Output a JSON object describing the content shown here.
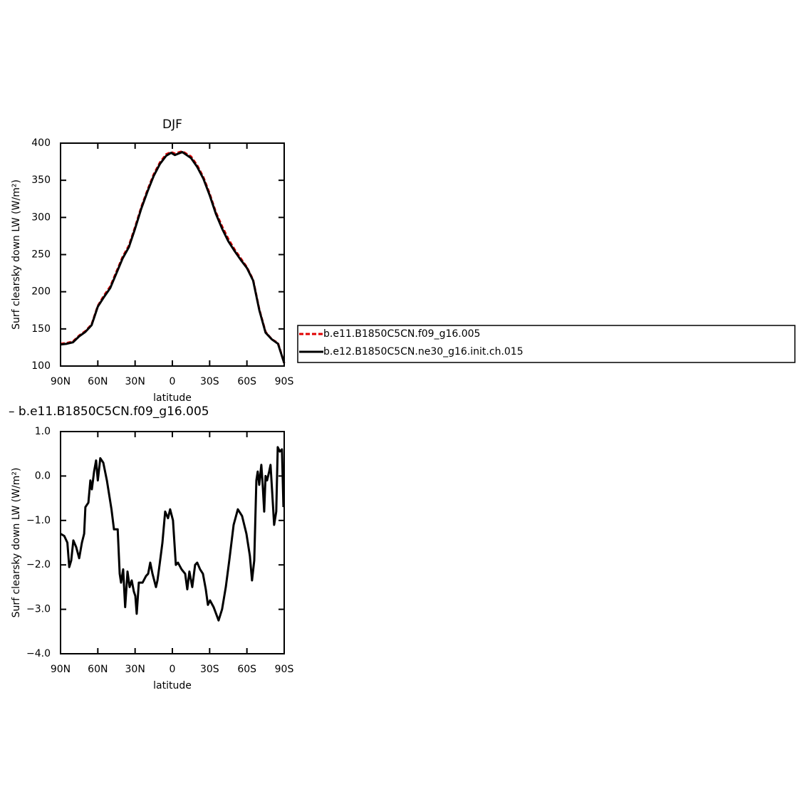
{
  "chart_data": [
    {
      "type": "line",
      "title": "DJF",
      "xlabel": "latitude",
      "ylabel": "Surf clearsky down LW (W/m²)",
      "x": [
        90,
        85,
        80,
        75,
        70,
        65,
        60,
        55,
        50,
        45,
        40,
        35,
        30,
        25,
        20,
        15,
        10,
        5,
        1,
        -2,
        -8,
        -15,
        -20,
        -25,
        -30,
        -35,
        -40,
        -45,
        -50,
        -55,
        -60,
        -65,
        -70,
        -75,
        -80,
        -85,
        -90
      ],
      "series": [
        {
          "name": "b.e11.B1850C5CN.f09_g16.005",
          "color": "#e00000",
          "dash": true,
          "values": [
            130,
            131,
            133,
            141,
            147,
            156,
            181,
            195,
            207,
            227,
            247,
            262,
            287,
            314,
            337,
            358,
            374,
            385,
            388,
            386,
            389,
            382,
            370,
            354,
            332,
            307,
            288,
            271,
            257,
            245,
            233,
            216,
            176,
            146,
            136,
            131,
            104
          ]
        },
        {
          "name": "b.e12.B1850C5CN.ne30_g16.init.ch.015",
          "color": "#000000",
          "dash": false,
          "values": [
            129,
            130,
            132,
            140,
            146,
            155,
            180,
            193,
            205,
            225,
            245,
            260,
            285,
            312,
            335,
            356,
            372,
            383,
            387,
            384,
            388,
            380,
            368,
            352,
            330,
            305,
            285,
            268,
            255,
            243,
            232,
            215,
            175,
            145,
            136,
            130,
            104
          ]
        }
      ],
      "xlim": [
        90,
        -90
      ],
      "xticks": [
        {
          "value": 90,
          "label": "90N"
        },
        {
          "value": 60,
          "label": "60N"
        },
        {
          "value": 30,
          "label": "30N"
        },
        0,
        {
          "value": -30,
          "label": "30S"
        },
        {
          "value": -60,
          "label": "60S"
        },
        {
          "value": -90,
          "label": "90S"
        }
      ],
      "ylim": [
        100,
        400
      ],
      "yticks": [
        100,
        150,
        200,
        250,
        300,
        350,
        400
      ]
    },
    {
      "type": "line",
      "title": "– b.e11.B1850C5CN.f09_g16.005",
      "xlabel": "latitude",
      "ylabel": "Surf clearsky down LW (W/m²)",
      "x": [
        90,
        87,
        84.5,
        83,
        81.4,
        79.7,
        77.4,
        75,
        72.8,
        71,
        70,
        67.6,
        66,
        64.8,
        63,
        61.4,
        60,
        58,
        55.6,
        52.7,
        49,
        47,
        44,
        42.4,
        41.3,
        39.6,
        38,
        36.1,
        34.4,
        32.7,
        31,
        29.8,
        28.7,
        27,
        24,
        21.2,
        19.5,
        17.8,
        16,
        13.2,
        12,
        10.3,
        8,
        5.8,
        3.5,
        1.8,
        -0.5,
        -2.8,
        -4.5,
        -7.4,
        -10.3,
        -12,
        -13.7,
        -16,
        -18.3,
        -20,
        -22.3,
        -24.6,
        -26.9,
        -28.6,
        -30.3,
        -33.2,
        -37.2,
        -40,
        -43,
        -45.8,
        -49.3,
        -52.7,
        -56.1,
        -59.6,
        -62.4,
        -64.1,
        -65.9,
        -67.6,
        -68.7,
        -69.9,
        -71.6,
        -72.7,
        -73.9,
        -75,
        -76.2,
        -77.9,
        -79,
        -80.2,
        -81.9,
        -83.6,
        -84.8,
        -86.5,
        -88.2,
        -89.4
      ],
      "series": [
        {
          "color": "#000000",
          "dash": false,
          "values": [
            -1.3,
            -1.35,
            -1.5,
            -2.05,
            -1.9,
            -1.45,
            -1.6,
            -1.85,
            -1.5,
            -1.3,
            -0.7,
            -0.6,
            -0.1,
            -0.3,
            0.1,
            0.35,
            -0.1,
            0.4,
            0.3,
            -0.1,
            -0.75,
            -1.2,
            -1.2,
            -2.2,
            -2.4,
            -2.1,
            -2.95,
            -2.15,
            -2.5,
            -2.35,
            -2.6,
            -2.7,
            -3.1,
            -2.4,
            -2.4,
            -2.25,
            -2.2,
            -1.95,
            -2.2,
            -2.5,
            -2.35,
            -2.0,
            -1.5,
            -0.8,
            -0.95,
            -0.75,
            -1.0,
            -2.0,
            -1.95,
            -2.1,
            -2.2,
            -2.55,
            -2.15,
            -2.5,
            -2.0,
            -1.95,
            -2.1,
            -2.2,
            -2.55,
            -2.9,
            -2.8,
            -2.95,
            -3.25,
            -3.0,
            -2.5,
            -1.9,
            -1.1,
            -0.75,
            -0.9,
            -1.3,
            -1.8,
            -2.35,
            -1.9,
            -0.1,
            0.1,
            -0.2,
            0.25,
            -0.2,
            -0.8,
            0.0,
            -0.1,
            0.1,
            0.25,
            -0.3,
            -1.1,
            -0.8,
            0.65,
            0.55,
            0.6,
            -0.7
          ]
        }
      ],
      "xlim": [
        90,
        -90
      ],
      "xticks": [
        {
          "value": 90,
          "label": "90N"
        },
        {
          "value": 60,
          "label": "60N"
        },
        {
          "value": 30,
          "label": "30N"
        },
        0,
        {
          "value": -30,
          "label": "30S"
        },
        {
          "value": -60,
          "label": "60S"
        },
        {
          "value": -90,
          "label": "90S"
        }
      ],
      "ylim": [
        -4,
        1
      ],
      "yticks": [
        {
          "value": -4,
          "label": "−4.0"
        },
        {
          "value": -3,
          "label": "−3.0"
        },
        {
          "value": -2,
          "label": "−2.0"
        },
        {
          "value": -1,
          "label": "−1.0"
        },
        {
          "value": 0,
          "label": "0.0"
        },
        {
          "value": 1,
          "label": "1.0"
        }
      ]
    }
  ]
}
